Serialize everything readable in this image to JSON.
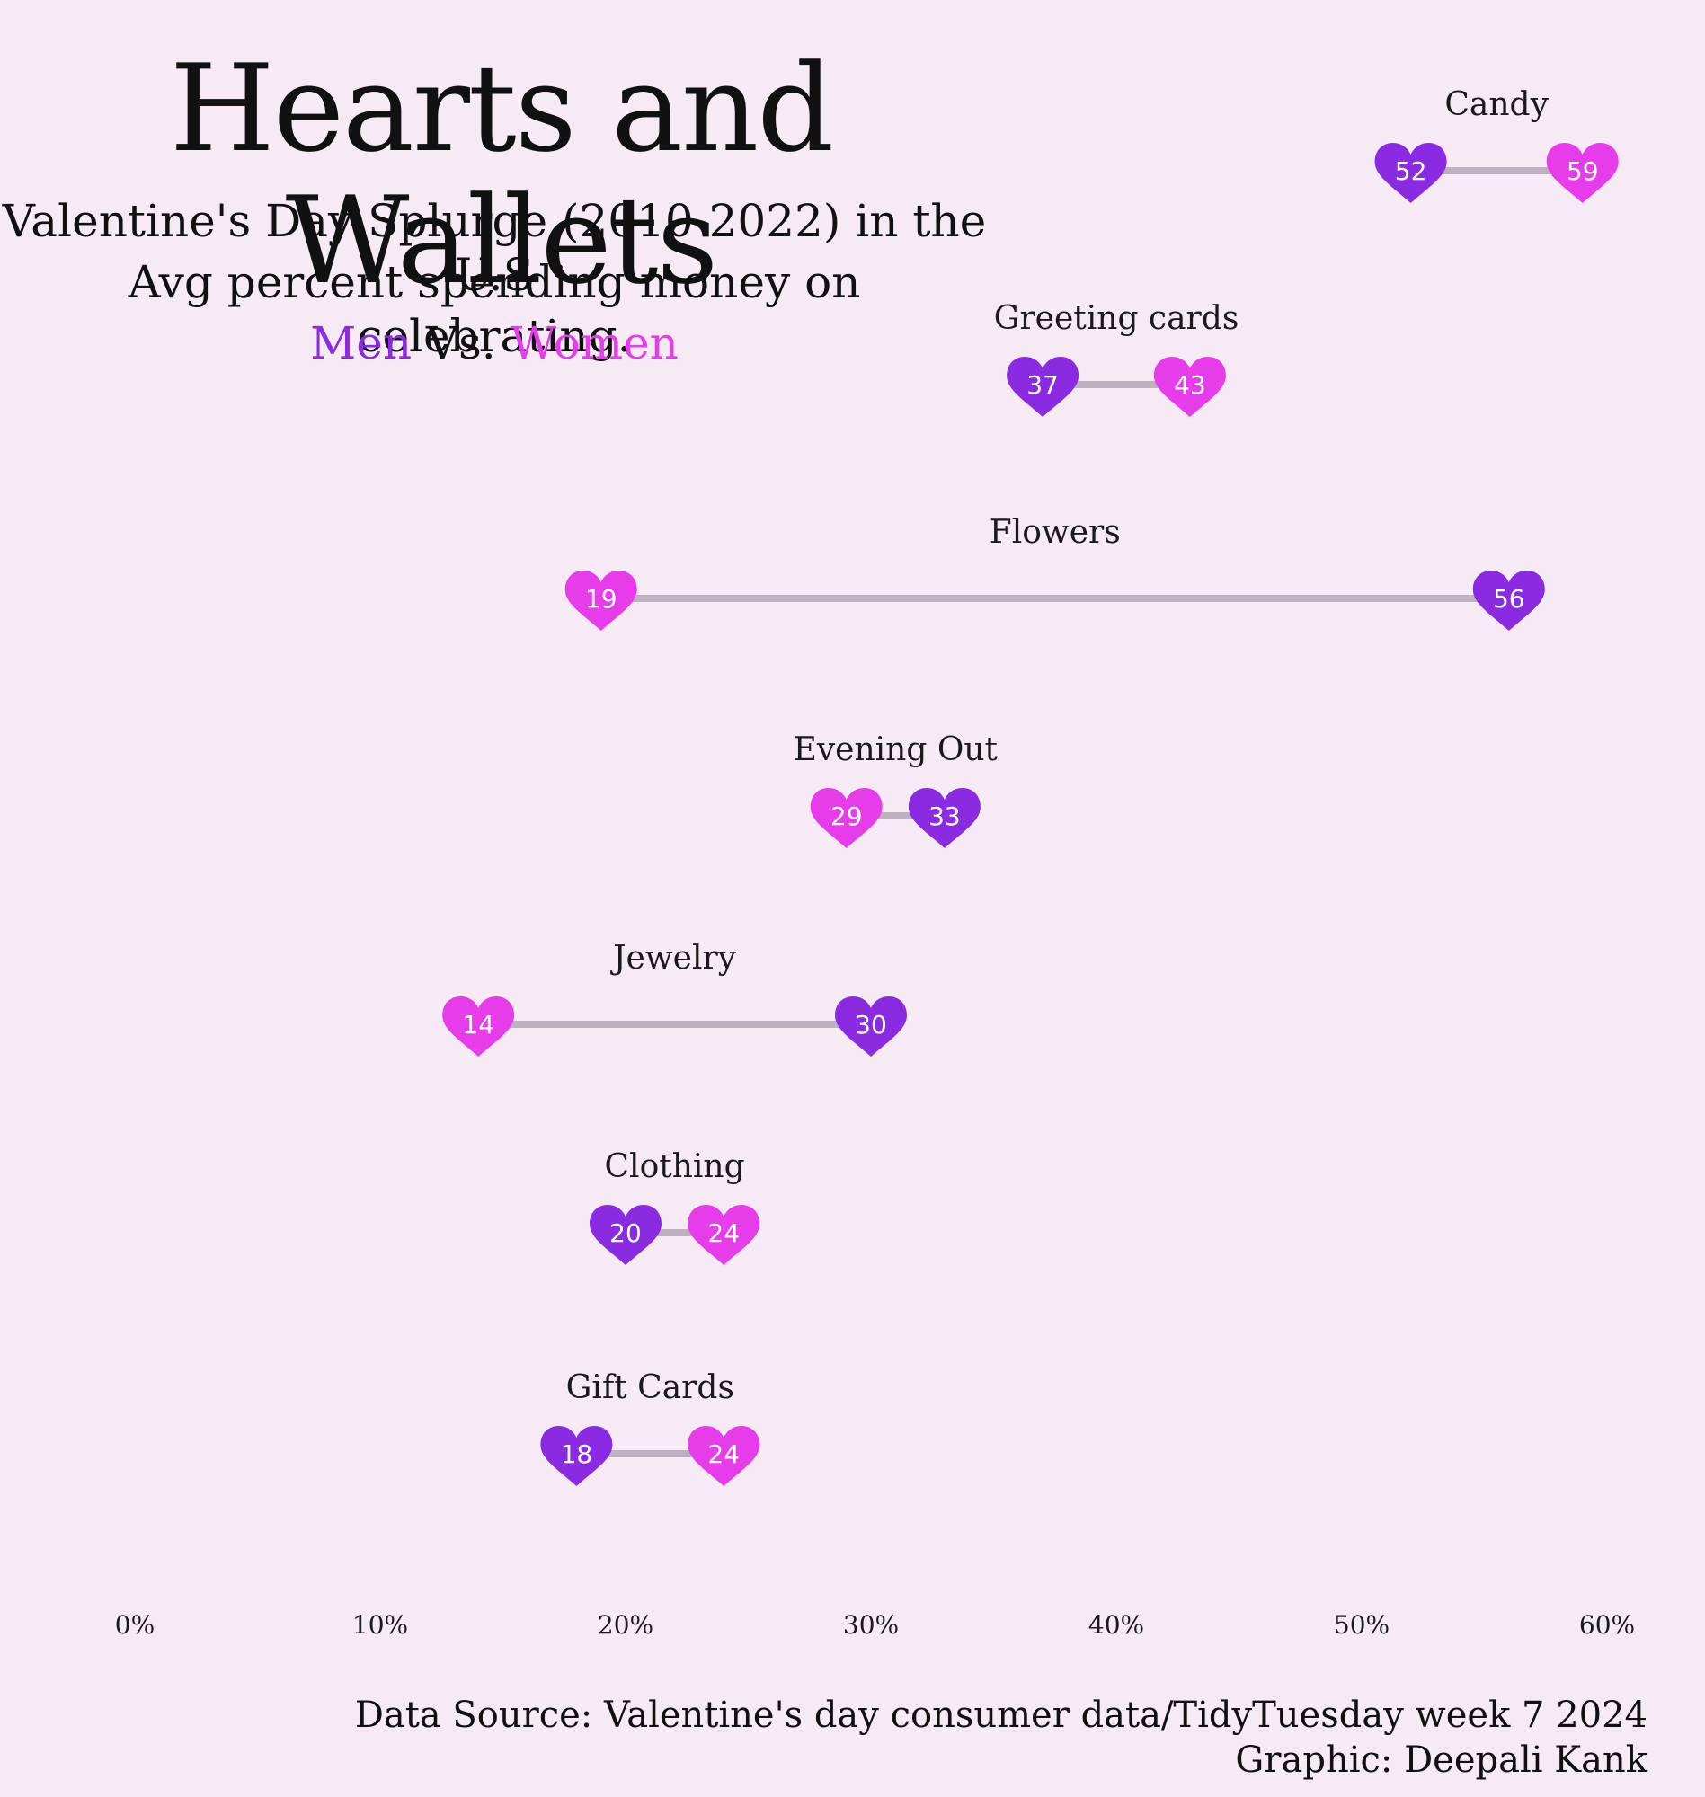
{
  "title": "Hearts and Wallets",
  "subtitle_line1": "Valentine's Day Splurge (2010-2022) in the U.S",
  "subtitle_line2": "Avg percent spending money on celebrating.",
  "legend": {
    "men": "Men",
    "vs": "Vs.",
    "women": "Women"
  },
  "source": "Data Source: Valentine's day consumer data/TidyTuesday week 7 2024",
  "graphic": "Graphic: Deepali Kank",
  "colors": {
    "men": "#8a2be2",
    "women": "#e73cea",
    "segment": "#bfb0bf",
    "background": "#f6eaf5"
  },
  "chart_data": {
    "type": "dumbbell",
    "x_ticks": [
      "0%",
      "10%",
      "20%",
      "30%",
      "40%",
      "50%",
      "60%"
    ],
    "xlim": [
      0,
      60
    ],
    "series": [
      {
        "name": "Men"
      },
      {
        "name": "Women"
      }
    ],
    "categories": [
      {
        "name": "Candy",
        "men": 52,
        "women": 59
      },
      {
        "name": "Greeting cards",
        "men": 37,
        "women": 43
      },
      {
        "name": "Flowers",
        "men": 56,
        "women": 19
      },
      {
        "name": "Evening Out",
        "men": 33,
        "women": 29
      },
      {
        "name": "Jewelry",
        "men": 30,
        "women": 14
      },
      {
        "name": "Clothing",
        "men": 20,
        "women": 24
      },
      {
        "name": "Gift Cards",
        "men": 18,
        "women": 24
      }
    ]
  }
}
